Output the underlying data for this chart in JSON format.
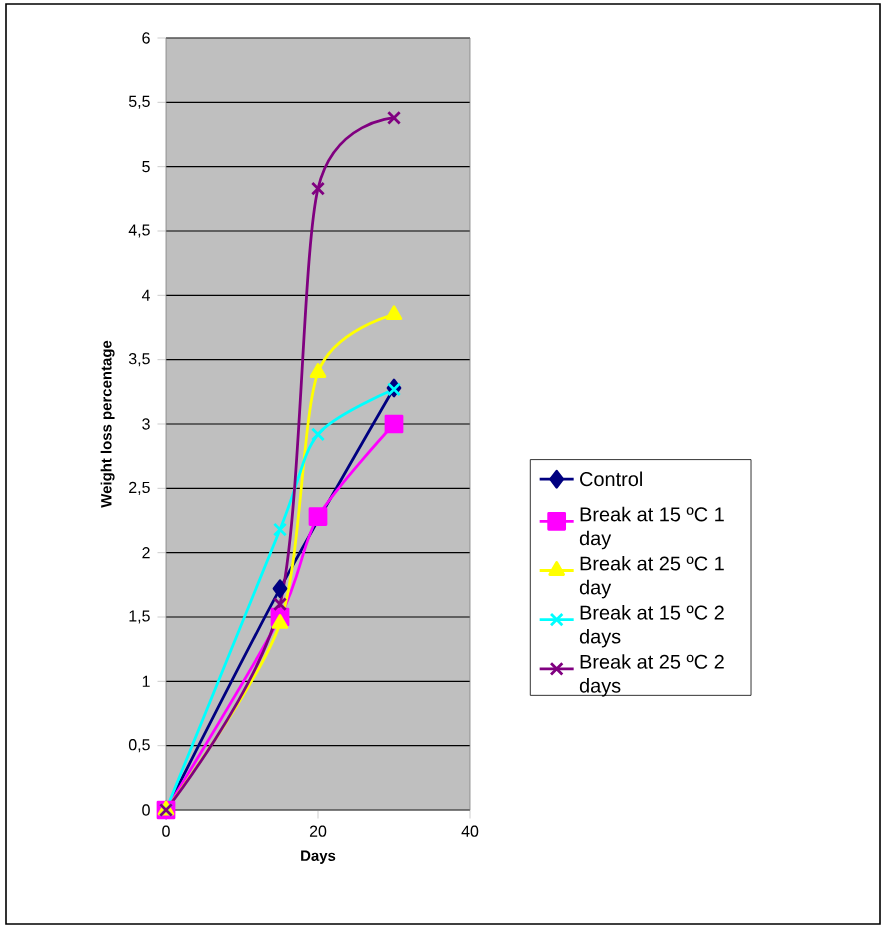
{
  "chart_data": {
    "type": "line",
    "xlabel": "Days",
    "ylabel": "Weight loss percentage",
    "x": [
      0,
      15,
      20,
      30
    ],
    "series": [
      {
        "name": "Control",
        "color": "#000080",
        "marker": "diamond",
        "values": [
          0,
          1.72,
          null,
          3.28
        ]
      },
      {
        "name": "Break at 15 ºC 1 day",
        "color": "#ff00ff",
        "marker": "square",
        "values": [
          0,
          1.5,
          2.28,
          3.0
        ]
      },
      {
        "name": "Break at 25 ºC 1 day",
        "color": "#ffff00",
        "marker": "triangle",
        "values": [
          0,
          1.45,
          3.4,
          3.85
        ]
      },
      {
        "name": "Break at 15 ºC 2 days",
        "color": "#00ffff",
        "marker": "cross",
        "values": [
          0,
          2.18,
          2.92,
          3.27
        ]
      },
      {
        "name": "Break at 25 ºC 2 days",
        "color": "#800080",
        "marker": "cross",
        "values": [
          0,
          1.6,
          4.83,
          5.38
        ]
      }
    ],
    "xlim": [
      0,
      40
    ],
    "xticks": [
      0,
      20,
      40
    ],
    "ylim": [
      0,
      6
    ],
    "yticks": [
      0,
      {
        "value": 0.5,
        "label": "0,5"
      },
      1,
      {
        "value": 1.5,
        "label": "1,5"
      },
      2,
      {
        "value": 2.5,
        "label": "2,5"
      },
      3,
      {
        "value": 3.5,
        "label": "3,5"
      },
      4,
      {
        "value": 4.5,
        "label": "4,5"
      },
      5,
      {
        "value": 5.5,
        "label": "5,5"
      },
      6
    ],
    "grid": "y",
    "legend": "right",
    "line_style": "solid"
  }
}
